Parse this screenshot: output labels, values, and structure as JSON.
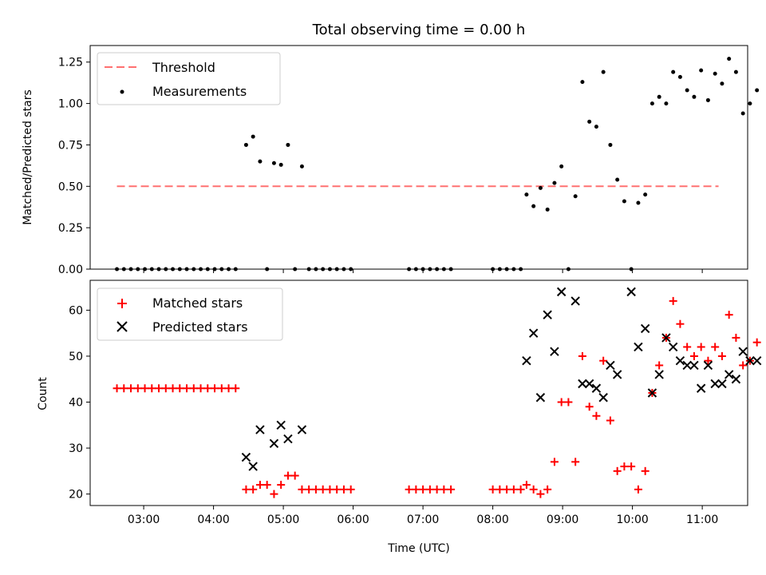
{
  "chart_data": [
    {
      "type": "scatter",
      "title": "Total observing time = 0.00 h",
      "xlabel": "",
      "ylabel": "Matched/Predicted stars",
      "xlim": [
        "02:14",
        "11:39"
      ],
      "ylim": [
        0,
        1.35
      ],
      "yticks": [
        "0.00",
        "0.25",
        "0.50",
        "0.75",
        "1.00",
        "1.25"
      ],
      "legend_position": "top-left",
      "threshold": {
        "name": "Threshold",
        "y": 0.5,
        "x_range": [
          "02:37",
          "11:14"
        ],
        "color": "#ff7070",
        "style": "dashed"
      },
      "series": [
        {
          "name": "Measurements",
          "color": "#000000",
          "marker": "dot",
          "points": [
            [
              "02:37",
              0
            ],
            [
              "02:43",
              0
            ],
            [
              "02:49",
              0
            ],
            [
              "02:55",
              0
            ],
            [
              "03:01",
              0
            ],
            [
              "03:07",
              0
            ],
            [
              "03:13",
              0
            ],
            [
              "03:19",
              0
            ],
            [
              "03:25",
              0
            ],
            [
              "03:31",
              0
            ],
            [
              "03:37",
              0
            ],
            [
              "03:43",
              0
            ],
            [
              "03:49",
              0
            ],
            [
              "03:55",
              0
            ],
            [
              "04:01",
              0
            ],
            [
              "04:07",
              0
            ],
            [
              "04:13",
              0
            ],
            [
              "04:19",
              0
            ],
            [
              "04:28",
              0.75
            ],
            [
              "04:34",
              0.8
            ],
            [
              "04:40",
              0.65
            ],
            [
              "04:46",
              0
            ],
            [
              "04:52",
              0.64
            ],
            [
              "04:58",
              0.63
            ],
            [
              "05:04",
              0.75
            ],
            [
              "05:10",
              0
            ],
            [
              "05:16",
              0.62
            ],
            [
              "05:22",
              0
            ],
            [
              "05:28",
              0
            ],
            [
              "05:34",
              0
            ],
            [
              "05:40",
              0
            ],
            [
              "05:46",
              0
            ],
            [
              "05:52",
              0
            ],
            [
              "05:58",
              0
            ],
            [
              "06:48",
              0
            ],
            [
              "06:54",
              0
            ],
            [
              "07:00",
              0
            ],
            [
              "07:06",
              0
            ],
            [
              "07:12",
              0
            ],
            [
              "07:18",
              0
            ],
            [
              "07:24",
              0
            ],
            [
              "08:00",
              0
            ],
            [
              "08:06",
              0
            ],
            [
              "08:12",
              0
            ],
            [
              "08:18",
              0
            ],
            [
              "08:24",
              0
            ],
            [
              "08:29",
              0.45
            ],
            [
              "08:35",
              0.38
            ],
            [
              "08:41",
              0.49
            ],
            [
              "08:47",
              0.36
            ],
            [
              "08:53",
              0.52
            ],
            [
              "08:59",
              0.62
            ],
            [
              "09:05",
              0
            ],
            [
              "09:11",
              0.44
            ],
            [
              "09:17",
              1.13
            ],
            [
              "09:23",
              0.89
            ],
            [
              "09:29",
              0.86
            ],
            [
              "09:35",
              1.19
            ],
            [
              "09:41",
              0.75
            ],
            [
              "09:47",
              0.54
            ],
            [
              "09:53",
              0.41
            ],
            [
              "09:59",
              0
            ],
            [
              "10:05",
              0.4
            ],
            [
              "10:11",
              0.45
            ],
            [
              "10:17",
              1.0
            ],
            [
              "10:23",
              1.04
            ],
            [
              "10:29",
              1.0
            ],
            [
              "10:35",
              1.19
            ],
            [
              "10:41",
              1.16
            ],
            [
              "10:47",
              1.08
            ],
            [
              "10:53",
              1.04
            ],
            [
              "10:59",
              1.2
            ],
            [
              "11:05",
              1.02
            ],
            [
              "11:11",
              1.18
            ],
            [
              "11:17",
              1.12
            ],
            [
              "11:23",
              1.27
            ],
            [
              "11:29",
              1.19
            ],
            [
              "11:35",
              0.94
            ],
            [
              "11:41",
              1.0
            ],
            [
              "11:47",
              1.08
            ]
          ]
        }
      ]
    },
    {
      "type": "scatter",
      "title": "",
      "xlabel": "Time (UTC)",
      "ylabel": "Count",
      "xlim": [
        "02:14",
        "11:39"
      ],
      "ylim": [
        17.5,
        66.5
      ],
      "yticks": [
        "20",
        "30",
        "40",
        "50",
        "60"
      ],
      "xticks": [
        "03:00",
        "04:00",
        "05:00",
        "06:00",
        "07:00",
        "08:00",
        "09:00",
        "10:00",
        "11:00"
      ],
      "legend_position": "top-left",
      "series": [
        {
          "name": "Matched stars",
          "color": "#ff0000",
          "marker": "plus",
          "points": [
            [
              "02:37",
              43
            ],
            [
              "02:43",
              43
            ],
            [
              "02:49",
              43
            ],
            [
              "02:55",
              43
            ],
            [
              "03:01",
              43
            ],
            [
              "03:07",
              43
            ],
            [
              "03:13",
              43
            ],
            [
              "03:19",
              43
            ],
            [
              "03:25",
              43
            ],
            [
              "03:31",
              43
            ],
            [
              "03:37",
              43
            ],
            [
              "03:43",
              43
            ],
            [
              "03:49",
              43
            ],
            [
              "03:55",
              43
            ],
            [
              "04:01",
              43
            ],
            [
              "04:07",
              43
            ],
            [
              "04:13",
              43
            ],
            [
              "04:19",
              43
            ],
            [
              "04:28",
              21
            ],
            [
              "04:34",
              21
            ],
            [
              "04:40",
              22
            ],
            [
              "04:46",
              22
            ],
            [
              "04:52",
              20
            ],
            [
              "04:58",
              22
            ],
            [
              "05:04",
              24
            ],
            [
              "05:10",
              24
            ],
            [
              "05:16",
              21
            ],
            [
              "05:22",
              21
            ],
            [
              "05:28",
              21
            ],
            [
              "05:34",
              21
            ],
            [
              "05:40",
              21
            ],
            [
              "05:46",
              21
            ],
            [
              "05:52",
              21
            ],
            [
              "05:58",
              21
            ],
            [
              "06:48",
              21
            ],
            [
              "06:54",
              21
            ],
            [
              "07:00",
              21
            ],
            [
              "07:06",
              21
            ],
            [
              "07:12",
              21
            ],
            [
              "07:18",
              21
            ],
            [
              "07:24",
              21
            ],
            [
              "08:00",
              21
            ],
            [
              "08:06",
              21
            ],
            [
              "08:12",
              21
            ],
            [
              "08:18",
              21
            ],
            [
              "08:24",
              21
            ],
            [
              "08:29",
              22
            ],
            [
              "08:35",
              21
            ],
            [
              "08:41",
              20
            ],
            [
              "08:47",
              21
            ],
            [
              "08:53",
              27
            ],
            [
              "08:59",
              40
            ],
            [
              "09:05",
              40
            ],
            [
              "09:11",
              27
            ],
            [
              "09:17",
              50
            ],
            [
              "09:23",
              39
            ],
            [
              "09:29",
              37
            ],
            [
              "09:35",
              49
            ],
            [
              "09:41",
              36
            ],
            [
              "09:47",
              25
            ],
            [
              "09:53",
              26
            ],
            [
              "09:59",
              26
            ],
            [
              "10:05",
              21
            ],
            [
              "10:11",
              25
            ],
            [
              "10:17",
              42
            ],
            [
              "10:23",
              48
            ],
            [
              "10:29",
              54
            ],
            [
              "10:35",
              62
            ],
            [
              "10:41",
              57
            ],
            [
              "10:47",
              52
            ],
            [
              "10:53",
              50
            ],
            [
              "10:59",
              52
            ],
            [
              "11:05",
              49
            ],
            [
              "11:11",
              52
            ],
            [
              "11:17",
              50
            ],
            [
              "11:23",
              59
            ],
            [
              "11:29",
              54
            ],
            [
              "11:35",
              48
            ],
            [
              "11:41",
              49
            ],
            [
              "11:47",
              53
            ]
          ]
        },
        {
          "name": "Predicted stars",
          "color": "#000000",
          "marker": "x",
          "points": [
            [
              "04:28",
              28
            ],
            [
              "04:34",
              26
            ],
            [
              "04:40",
              34
            ],
            [
              "04:52",
              31
            ],
            [
              "04:58",
              35
            ],
            [
              "05:04",
              32
            ],
            [
              "05:16",
              34
            ],
            [
              "08:29",
              49
            ],
            [
              "08:35",
              55
            ],
            [
              "08:41",
              41
            ],
            [
              "08:47",
              59
            ],
            [
              "08:53",
              51
            ],
            [
              "08:59",
              64
            ],
            [
              "09:11",
              62
            ],
            [
              "09:17",
              44
            ],
            [
              "09:23",
              44
            ],
            [
              "09:29",
              43
            ],
            [
              "09:35",
              41
            ],
            [
              "09:41",
              48
            ],
            [
              "09:47",
              46
            ],
            [
              "09:59",
              64
            ],
            [
              "10:05",
              52
            ],
            [
              "10:11",
              56
            ],
            [
              "10:17",
              42
            ],
            [
              "10:23",
              46
            ],
            [
              "10:29",
              54
            ],
            [
              "10:35",
              52
            ],
            [
              "10:41",
              49
            ],
            [
              "10:47",
              48
            ],
            [
              "10:53",
              48
            ],
            [
              "10:59",
              43
            ],
            [
              "11:05",
              48
            ],
            [
              "11:11",
              44
            ],
            [
              "11:17",
              44
            ],
            [
              "11:23",
              46
            ],
            [
              "11:29",
              45
            ],
            [
              "11:35",
              51
            ],
            [
              "11:41",
              49
            ],
            [
              "11:47",
              49
            ]
          ]
        }
      ]
    }
  ]
}
